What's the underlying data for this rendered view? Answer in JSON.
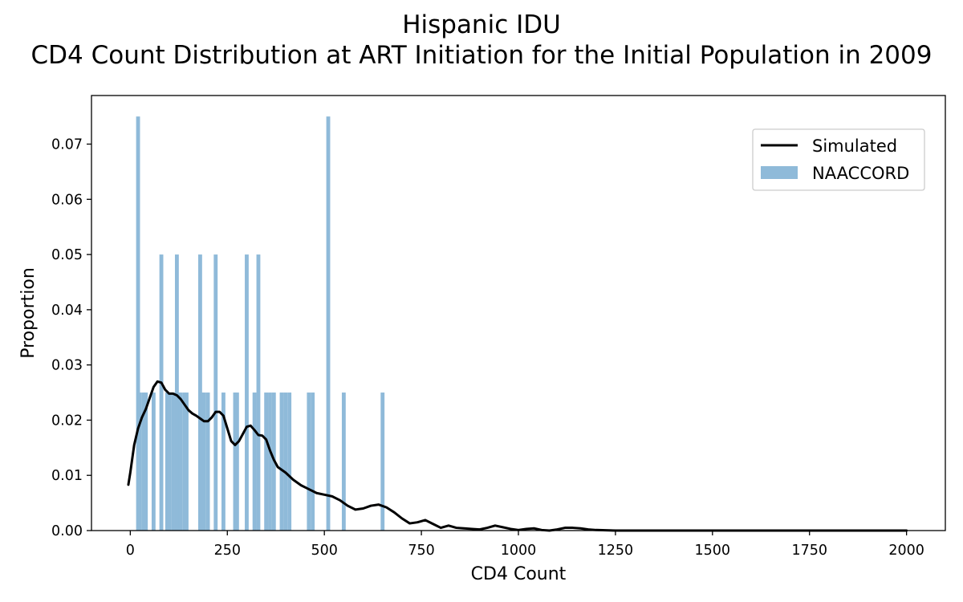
{
  "chart_data": {
    "type": "bar",
    "title_line1": "Hispanic IDU",
    "title_line2": "CD4 Count Distribution at ART Initiation for the Initial Population in 2009",
    "xlabel": "CD4 Count",
    "ylabel": "Proportion",
    "xlim": [
      -100,
      2100
    ],
    "ylim": [
      0,
      0.0788
    ],
    "xticks": [
      0,
      250,
      500,
      750,
      1000,
      1250,
      1500,
      1750,
      2000
    ],
    "xtick_labels": [
      "0",
      "250",
      "500",
      "750",
      "1000",
      "1250",
      "1500",
      "1750",
      "2000"
    ],
    "yticks": [
      0,
      0.01,
      0.02,
      0.03,
      0.04,
      0.05,
      0.06,
      0.07
    ],
    "ytick_labels": [
      "0.00",
      "0.01",
      "0.02",
      "0.03",
      "0.04",
      "0.05",
      "0.06",
      "0.07"
    ],
    "grid": false,
    "legend_position": "top-right",
    "colors": {
      "simulated": "#000000",
      "naaccord": "#8fbad9"
    },
    "series": [
      {
        "name": "NAACCORD",
        "kind": "bar",
        "bar_width": 10,
        "x": [
          20,
          25,
          35,
          40,
          60,
          80,
          95,
          100,
          110,
          120,
          125,
          130,
          140,
          145,
          180,
          185,
          190,
          200,
          220,
          240,
          270,
          275,
          300,
          320,
          330,
          350,
          360,
          370,
          390,
          400,
          410,
          460,
          470,
          510,
          550,
          650
        ],
        "y": [
          0.075,
          0.025,
          0.025,
          0.025,
          0.025,
          0.05,
          0.025,
          0.025,
          0.025,
          0.05,
          0.025,
          0.025,
          0.025,
          0.025,
          0.05,
          0.025,
          0.025,
          0.025,
          0.05,
          0.025,
          0.025,
          0.025,
          0.05,
          0.025,
          0.05,
          0.025,
          0.025,
          0.025,
          0.025,
          0.025,
          0.025,
          0.025,
          0.025,
          0.075,
          0.025,
          0.025
        ]
      },
      {
        "name": "Simulated",
        "kind": "line",
        "x": [
          -5,
          0,
          10,
          20,
          30,
          40,
          50,
          60,
          70,
          80,
          90,
          100,
          110,
          120,
          130,
          140,
          150,
          160,
          170,
          180,
          190,
          200,
          210,
          220,
          230,
          240,
          250,
          260,
          270,
          280,
          290,
          300,
          310,
          320,
          330,
          340,
          350,
          360,
          370,
          380,
          400,
          420,
          440,
          460,
          480,
          500,
          520,
          540,
          560,
          580,
          600,
          620,
          640,
          660,
          680,
          700,
          720,
          740,
          760,
          780,
          800,
          820,
          840,
          860,
          880,
          900,
          920,
          940,
          960,
          980,
          1000,
          1020,
          1040,
          1060,
          1080,
          1100,
          1120,
          1140,
          1160,
          1180,
          1200,
          1250,
          1300,
          1400,
          1500,
          1600,
          1700,
          1800,
          1900,
          2000
        ],
        "y": [
          0.0083,
          0.0105,
          0.0155,
          0.0185,
          0.0205,
          0.022,
          0.024,
          0.026,
          0.027,
          0.0268,
          0.0255,
          0.0248,
          0.0248,
          0.0245,
          0.0238,
          0.0228,
          0.0218,
          0.0212,
          0.0208,
          0.0203,
          0.0198,
          0.0198,
          0.0205,
          0.0215,
          0.0215,
          0.0208,
          0.0185,
          0.0162,
          0.0155,
          0.0162,
          0.0175,
          0.0188,
          0.019,
          0.0182,
          0.0173,
          0.0172,
          0.0165,
          0.0145,
          0.0128,
          0.0115,
          0.0105,
          0.0092,
          0.0082,
          0.0075,
          0.0068,
          0.0065,
          0.0062,
          0.0055,
          0.0045,
          0.0038,
          0.004,
          0.0045,
          0.0047,
          0.0042,
          0.0033,
          0.0022,
          0.0013,
          0.0015,
          0.0019,
          0.0012,
          0.0005,
          0.0009,
          0.0005,
          0.0004,
          0.0003,
          0.0002,
          0.0005,
          0.0009,
          0.0006,
          0.0003,
          0.0001,
          0.0003,
          0.0004,
          0.0001,
          0.0,
          0.0002,
          0.0005,
          0.0005,
          0.0004,
          0.0002,
          0.0001,
          0.0,
          0.0,
          0.0,
          0.0,
          0.0,
          0.0,
          0.0,
          0.0,
          0.0
        ]
      }
    ]
  }
}
